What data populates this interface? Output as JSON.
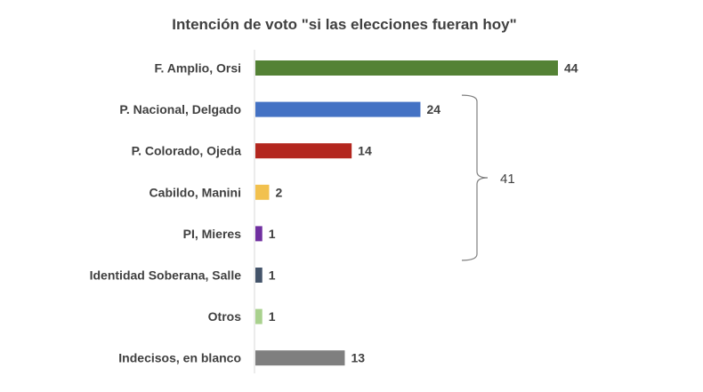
{
  "chart_data": {
    "type": "bar",
    "orientation": "horizontal",
    "title": "Intención de voto \"si las elecciones fueran hoy\"",
    "xlabel": "",
    "ylabel": "",
    "xlim": [
      0,
      44
    ],
    "grid": false,
    "legend": "none",
    "categories": [
      "F. Amplio, Orsi",
      "P. Nacional, Delgado",
      "P. Colorado, Ojeda",
      "Cabildo, Manini",
      "PI, Mieres",
      "Identidad Soberana, Salle",
      "Otros",
      "Indecisos, en blanco"
    ],
    "values": [
      44,
      24,
      14,
      2,
      1,
      1,
      1,
      13
    ],
    "colors": [
      "#548235",
      "#4472C4",
      "#B3261E",
      "#F2C14E",
      "#7030A0",
      "#44546A",
      "#A9D18E",
      "#7F7F7F"
    ],
    "annotations": [
      {
        "type": "bracket",
        "from_category": 1,
        "to_category": 4,
        "label": "41"
      }
    ]
  }
}
